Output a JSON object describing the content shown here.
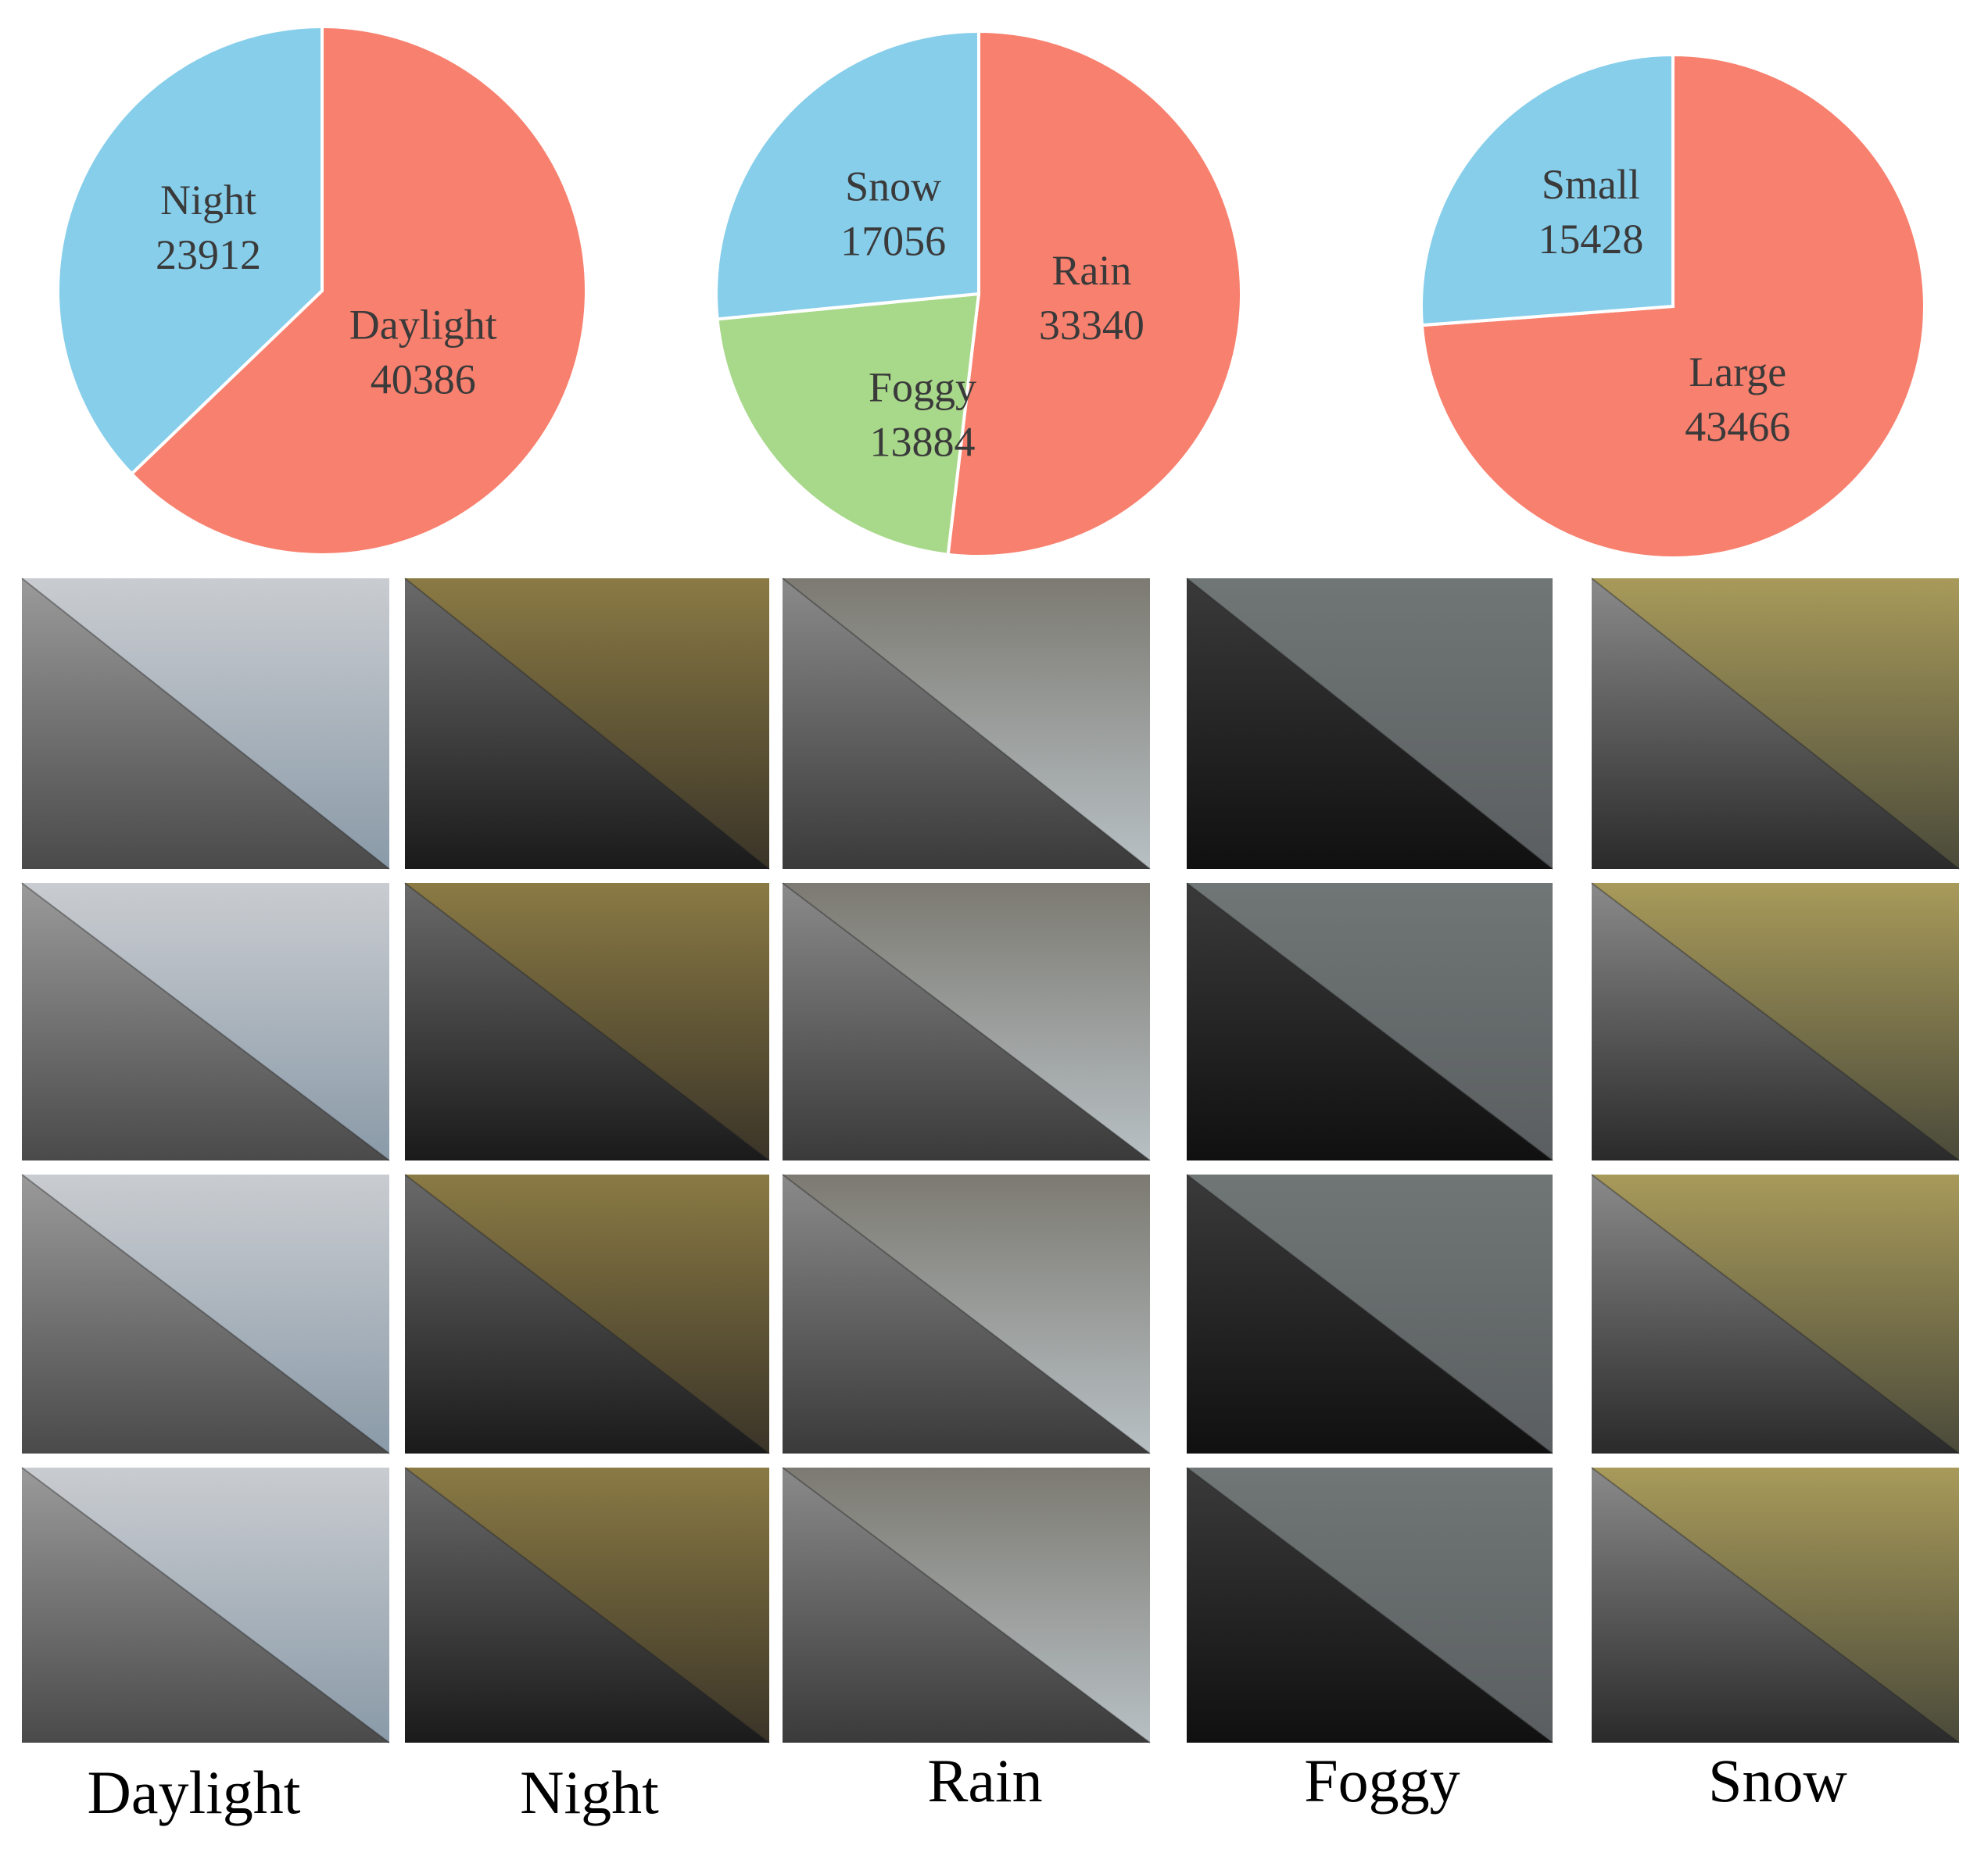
{
  "chart_data": [
    {
      "type": "pie",
      "slices": [
        {
          "label": "Daylight",
          "value": 40386,
          "color": "#F8806E"
        },
        {
          "label": "Night",
          "value": 23912,
          "color": "#87CEEB"
        }
      ]
    },
    {
      "type": "pie",
      "slices": [
        {
          "label": "Rain",
          "value": 33340,
          "color": "#F8806E"
        },
        {
          "label": "Foggy",
          "value": 13884,
          "color": "#A8D88A"
        },
        {
          "label": "Snow",
          "value": 17056,
          "color": "#87CEEB"
        }
      ]
    },
    {
      "type": "pie",
      "slices": [
        {
          "label": "Large",
          "value": 43466,
          "color": "#F8806E"
        },
        {
          "label": "Small",
          "value": 15428,
          "color": "#87CEEB"
        }
      ]
    }
  ],
  "columns": [
    "Daylight",
    "Night",
    "Rain",
    "Foggy",
    "Snow"
  ]
}
